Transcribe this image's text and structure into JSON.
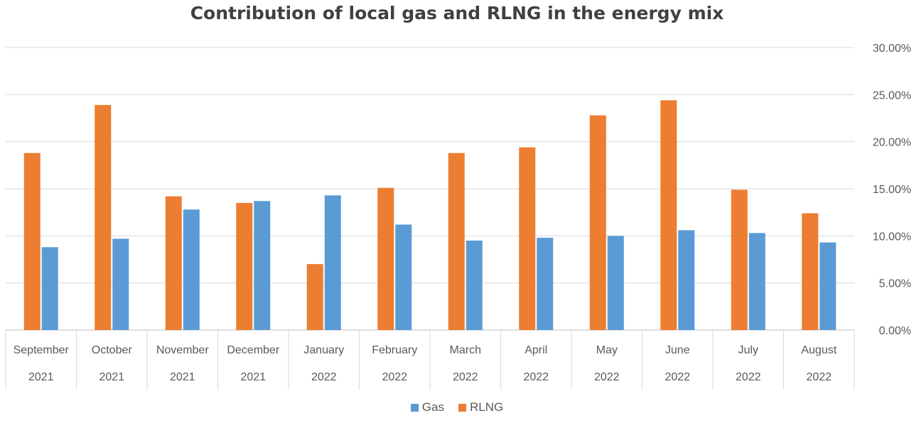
{
  "chart_data": {
    "type": "bar",
    "title": "Contribution of local gas and RLNG  in the energy mix",
    "categories": [
      [
        "September",
        "2021"
      ],
      [
        "October",
        "2021"
      ],
      [
        "November",
        "2021"
      ],
      [
        "December",
        "2021"
      ],
      [
        "January",
        "2022"
      ],
      [
        "February",
        "2022"
      ],
      [
        "March",
        "2022"
      ],
      [
        "April",
        "2022"
      ],
      [
        "May",
        "2022"
      ],
      [
        "June",
        "2022"
      ],
      [
        "July",
        "2022"
      ],
      [
        "August",
        "2022"
      ]
    ],
    "series": [
      {
        "name": "RLNG",
        "color": "#ED7D31",
        "values": [
          18.8,
          23.9,
          14.2,
          13.5,
          7.0,
          15.1,
          18.8,
          19.4,
          22.8,
          24.4,
          14.9,
          12.4
        ]
      },
      {
        "name": "Gas",
        "color": "#5B9BD5",
        "values": [
          8.8,
          9.7,
          12.8,
          13.7,
          14.3,
          11.2,
          9.5,
          9.8,
          10.0,
          10.6,
          10.3,
          9.3
        ]
      }
    ],
    "legend_order": [
      "Gas",
      "RLNG"
    ],
    "ylim": [
      0,
      30
    ],
    "yticks": [
      "0.00%",
      "5.00%",
      "10.00%",
      "15.00%",
      "20.00%",
      "25.00%",
      "30.00%"
    ],
    "y_axis_position": "right",
    "grid": true,
    "legend_position": "bottom"
  }
}
